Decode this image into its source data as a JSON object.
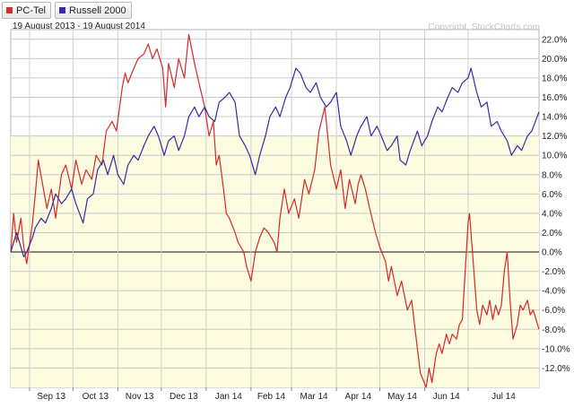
{
  "legend": [
    {
      "label": "PC-Tel",
      "color": "#d42a2a"
    },
    {
      "label": "Russell 2000",
      "color": "#3a2aa8"
    }
  ],
  "subtitle": "19 August 2013 - 19 August 2014",
  "credit": "Copyright, StockCharts.com",
  "chart_data": {
    "type": "line",
    "ylim": [
      -14,
      23
    ],
    "y_unit": "%",
    "y_ticks": [
      "22.0%",
      "20.0%",
      "18.0%",
      "16.0%",
      "14.0%",
      "12.0%",
      "10.0%",
      "8.0%",
      "6.0%",
      "4.0%",
      "2.0%",
      "0.0%",
      "-2.0%",
      "-4.0%",
      "-6.0%",
      "-8.0%",
      "-10.0%",
      "-12.0%"
    ],
    "x_ticks": [
      "Sep 13",
      "Oct 13",
      "Nov 13",
      "Dec 13",
      "Jan 14",
      "Feb 14",
      "Mar 14",
      "Apr 14",
      "May 14",
      "Jun 14",
      "Jul 14"
    ],
    "x_tick_dates": [
      "2013-09-01",
      "2013-10-01",
      "2013-11-01",
      "2013-12-01",
      "2014-01-01",
      "2014-02-01",
      "2014-03-01",
      "2014-04-01",
      "2014-05-01",
      "2014-06-01",
      "2014-07-01"
    ],
    "x_range": [
      "2013-08-19",
      "2014-08-19"
    ],
    "zero_line": 0,
    "grid": true,
    "shading": "light yellow below 12%",
    "series": [
      {
        "name": "PC-Tel",
        "color": "#d42a2a",
        "points": [
          [
            "2013-08-19",
            0.0
          ],
          [
            "2013-08-21",
            4.0
          ],
          [
            "2013-08-23",
            1.0
          ],
          [
            "2013-08-26",
            3.5
          ],
          [
            "2013-08-28",
            0.5
          ],
          [
            "2013-08-30",
            -1.2
          ],
          [
            "2013-09-03",
            3.0
          ],
          [
            "2013-09-05",
            6.0
          ],
          [
            "2013-09-07",
            9.5
          ],
          [
            "2013-09-10",
            7.0
          ],
          [
            "2013-09-13",
            4.5
          ],
          [
            "2013-09-16",
            6.5
          ],
          [
            "2013-09-19",
            3.5
          ],
          [
            "2013-09-23",
            8.0
          ],
          [
            "2013-09-26",
            9.0
          ],
          [
            "2013-09-30",
            6.5
          ],
          [
            "2013-10-03",
            9.5
          ],
          [
            "2013-10-07",
            7.0
          ],
          [
            "2013-10-10",
            8.5
          ],
          [
            "2013-10-14",
            7.5
          ],
          [
            "2013-10-17",
            10.0
          ],
          [
            "2013-10-21",
            9.0
          ],
          [
            "2013-10-24",
            12.5
          ],
          [
            "2013-10-28",
            13.5
          ],
          [
            "2013-10-31",
            12.5
          ],
          [
            "2013-11-04",
            17.0
          ],
          [
            "2013-11-06",
            18.5
          ],
          [
            "2013-11-08",
            17.5
          ],
          [
            "2013-11-12",
            19.0
          ],
          [
            "2013-11-15",
            20.0
          ],
          [
            "2013-11-19",
            20.5
          ],
          [
            "2013-11-22",
            21.5
          ],
          [
            "2013-11-25",
            20.0
          ],
          [
            "2013-11-28",
            21.0
          ],
          [
            "2013-12-02",
            19.0
          ],
          [
            "2013-12-04",
            15.0
          ],
          [
            "2013-12-06",
            19.5
          ],
          [
            "2013-12-10",
            17.0
          ],
          [
            "2013-12-13",
            20.0
          ],
          [
            "2013-12-17",
            18.0
          ],
          [
            "2013-12-20",
            22.5
          ],
          [
            "2013-12-24",
            19.5
          ],
          [
            "2013-12-27",
            17.5
          ],
          [
            "2013-12-31",
            15.0
          ],
          [
            "2014-01-03",
            12.0
          ],
          [
            "2014-01-06",
            13.5
          ],
          [
            "2014-01-08",
            9.0
          ],
          [
            "2014-01-10",
            10.0
          ],
          [
            "2014-01-13",
            6.5
          ],
          [
            "2014-01-15",
            4.0
          ],
          [
            "2014-01-17",
            3.5
          ],
          [
            "2014-01-21",
            2.0
          ],
          [
            "2014-01-23",
            1.0
          ],
          [
            "2014-01-27",
            0.0
          ],
          [
            "2014-01-29",
            -1.5
          ],
          [
            "2014-02-01",
            -3.0
          ],
          [
            "2014-02-04",
            0.0
          ],
          [
            "2014-02-07",
            1.5
          ],
          [
            "2014-02-10",
            2.5
          ],
          [
            "2014-02-13",
            2.0
          ],
          [
            "2014-02-17",
            1.0
          ],
          [
            "2014-02-19",
            0.0
          ],
          [
            "2014-02-21",
            3.5
          ],
          [
            "2014-02-24",
            6.5
          ],
          [
            "2014-02-27",
            4.0
          ],
          [
            "2014-03-03",
            5.5
          ],
          [
            "2014-03-06",
            3.5
          ],
          [
            "2014-03-10",
            7.5
          ],
          [
            "2014-03-13",
            6.0
          ],
          [
            "2014-03-17",
            8.5
          ],
          [
            "2014-03-20",
            12.5
          ],
          [
            "2014-03-24",
            15.0
          ],
          [
            "2014-03-26",
            12.0
          ],
          [
            "2014-03-28",
            9.0
          ],
          [
            "2014-04-01",
            6.5
          ],
          [
            "2014-04-04",
            8.5
          ],
          [
            "2014-04-07",
            4.5
          ],
          [
            "2014-04-10",
            7.5
          ],
          [
            "2014-04-14",
            5.0
          ],
          [
            "2014-04-16",
            7.0
          ],
          [
            "2014-04-18",
            8.0
          ],
          [
            "2014-04-21",
            6.5
          ],
          [
            "2014-04-24",
            4.5
          ],
          [
            "2014-04-28",
            2.0
          ],
          [
            "2014-05-01",
            0.5
          ],
          [
            "2014-05-05",
            -1.0
          ],
          [
            "2014-05-07",
            -3.0
          ],
          [
            "2014-05-09",
            -1.5
          ],
          [
            "2014-05-13",
            -4.5
          ],
          [
            "2014-05-16",
            -3.0
          ],
          [
            "2014-05-20",
            -6.0
          ],
          [
            "2014-05-23",
            -5.0
          ],
          [
            "2014-05-27",
            -10.0
          ],
          [
            "2014-05-29",
            -12.5
          ],
          [
            "2014-06-02",
            -14.0
          ],
          [
            "2014-06-04",
            -12.0
          ],
          [
            "2014-06-06",
            -13.5
          ],
          [
            "2014-06-09",
            -10.5
          ],
          [
            "2014-06-11",
            -9.5
          ],
          [
            "2014-06-13",
            -10.5
          ],
          [
            "2014-06-16",
            -8.5
          ],
          [
            "2014-06-18",
            -9.5
          ],
          [
            "2014-06-20",
            -8.5
          ],
          [
            "2014-06-23",
            -9.0
          ],
          [
            "2014-06-25",
            -7.5
          ],
          [
            "2014-06-27",
            -7.0
          ],
          [
            "2014-06-29",
            -2.0
          ],
          [
            "2014-07-01",
            3.0
          ],
          [
            "2014-07-02",
            4.0
          ],
          [
            "2014-07-04",
            0.0
          ],
          [
            "2014-07-07",
            -6.0
          ],
          [
            "2014-07-09",
            -7.5
          ],
          [
            "2014-07-11",
            -5.5
          ],
          [
            "2014-07-14",
            -6.5
          ],
          [
            "2014-07-16",
            -5.0
          ],
          [
            "2014-07-18",
            -7.0
          ],
          [
            "2014-07-20",
            -5.5
          ],
          [
            "2014-07-22",
            -6.5
          ],
          [
            "2014-07-24",
            -5.5
          ],
          [
            "2014-07-26",
            -2.0
          ],
          [
            "2014-07-28",
            0.0
          ],
          [
            "2014-07-30",
            -5.0
          ],
          [
            "2014-08-01",
            -9.0
          ],
          [
            "2014-08-04",
            -7.5
          ],
          [
            "2014-08-06",
            -5.5
          ],
          [
            "2014-08-08",
            -6.0
          ],
          [
            "2014-08-11",
            -5.0
          ],
          [
            "2014-08-13",
            -6.5
          ],
          [
            "2014-08-15",
            -6.0
          ],
          [
            "2014-08-19",
            -8.0
          ]
        ]
      },
      {
        "name": "Russell 2000",
        "color": "#3a2aa8",
        "points": [
          [
            "2013-08-19",
            0.0
          ],
          [
            "2013-08-21",
            1.0
          ],
          [
            "2013-08-23",
            2.0
          ],
          [
            "2013-08-26",
            0.5
          ],
          [
            "2013-08-28",
            -0.5
          ],
          [
            "2013-08-30",
            0.0
          ],
          [
            "2013-09-03",
            1.5
          ],
          [
            "2013-09-05",
            2.5
          ],
          [
            "2013-09-09",
            3.5
          ],
          [
            "2013-09-12",
            3.0
          ],
          [
            "2013-09-16",
            4.5
          ],
          [
            "2013-09-19",
            6.0
          ],
          [
            "2013-09-23",
            5.0
          ],
          [
            "2013-09-26",
            5.5
          ],
          [
            "2013-09-30",
            6.5
          ],
          [
            "2013-10-03",
            5.0
          ],
          [
            "2013-10-08",
            3.0
          ],
          [
            "2013-10-11",
            5.5
          ],
          [
            "2013-10-15",
            6.0
          ],
          [
            "2013-10-18",
            8.5
          ],
          [
            "2013-10-22",
            9.5
          ],
          [
            "2013-10-25",
            8.0
          ],
          [
            "2013-10-29",
            10.0
          ],
          [
            "2013-11-01",
            8.0
          ],
          [
            "2013-11-05",
            7.0
          ],
          [
            "2013-11-08",
            9.0
          ],
          [
            "2013-11-12",
            10.0
          ],
          [
            "2013-11-15",
            9.5
          ],
          [
            "2013-11-19",
            11.0
          ],
          [
            "2013-11-22",
            12.0
          ],
          [
            "2013-11-26",
            13.0
          ],
          [
            "2013-11-29",
            12.0
          ],
          [
            "2013-12-03",
            10.0
          ],
          [
            "2013-12-06",
            11.5
          ],
          [
            "2013-12-10",
            12.0
          ],
          [
            "2013-12-13",
            10.5
          ],
          [
            "2013-12-17",
            12.0
          ],
          [
            "2013-12-20",
            14.0
          ],
          [
            "2013-12-24",
            15.0
          ],
          [
            "2013-12-27",
            14.0
          ],
          [
            "2013-12-31",
            15.0
          ],
          [
            "2014-01-03",
            14.0
          ],
          [
            "2014-01-07",
            13.5
          ],
          [
            "2014-01-10",
            15.5
          ],
          [
            "2014-01-14",
            16.0
          ],
          [
            "2014-01-17",
            16.5
          ],
          [
            "2014-01-21",
            15.5
          ],
          [
            "2014-01-24",
            12.0
          ],
          [
            "2014-01-28",
            11.0
          ],
          [
            "2014-01-31",
            10.0
          ],
          [
            "2014-02-04",
            8.0
          ],
          [
            "2014-02-07",
            10.0
          ],
          [
            "2014-02-11",
            12.0
          ],
          [
            "2014-02-14",
            14.0
          ],
          [
            "2014-02-18",
            15.0
          ],
          [
            "2014-02-21",
            14.0
          ],
          [
            "2014-02-25",
            16.0
          ],
          [
            "2014-02-28",
            17.0
          ],
          [
            "2014-03-04",
            19.0
          ],
          [
            "2014-03-07",
            18.5
          ],
          [
            "2014-03-11",
            17.0
          ],
          [
            "2014-03-14",
            16.5
          ],
          [
            "2014-03-18",
            17.5
          ],
          [
            "2014-03-21",
            16.0
          ],
          [
            "2014-03-25",
            15.0
          ],
          [
            "2014-03-28",
            15.5
          ],
          [
            "2014-04-01",
            16.5
          ],
          [
            "2014-04-04",
            13.0
          ],
          [
            "2014-04-08",
            11.5
          ],
          [
            "2014-04-11",
            10.0
          ],
          [
            "2014-04-15",
            12.0
          ],
          [
            "2014-04-18",
            13.0
          ],
          [
            "2014-04-22",
            14.0
          ],
          [
            "2014-04-25",
            12.0
          ],
          [
            "2014-04-29",
            13.0
          ],
          [
            "2014-05-02",
            12.0
          ],
          [
            "2014-05-06",
            10.5
          ],
          [
            "2014-05-09",
            11.0
          ],
          [
            "2014-05-13",
            12.0
          ],
          [
            "2014-05-15",
            9.5
          ],
          [
            "2014-05-19",
            9.0
          ],
          [
            "2014-05-22",
            10.5
          ],
          [
            "2014-05-27",
            12.5
          ],
          [
            "2014-05-30",
            11.0
          ],
          [
            "2014-06-03",
            12.0
          ],
          [
            "2014-06-06",
            13.5
          ],
          [
            "2014-06-10",
            15.0
          ],
          [
            "2014-06-13",
            14.5
          ],
          [
            "2014-06-17",
            16.0
          ],
          [
            "2014-06-20",
            17.0
          ],
          [
            "2014-06-24",
            16.5
          ],
          [
            "2014-06-27",
            17.5
          ],
          [
            "2014-07-01",
            18.0
          ],
          [
            "2014-07-03",
            19.0
          ],
          [
            "2014-07-07",
            16.5
          ],
          [
            "2014-07-10",
            15.0
          ],
          [
            "2014-07-14",
            15.5
          ],
          [
            "2014-07-17",
            13.0
          ],
          [
            "2014-07-21",
            13.5
          ],
          [
            "2014-07-24",
            12.5
          ],
          [
            "2014-07-28",
            11.5
          ],
          [
            "2014-07-31",
            10.0
          ],
          [
            "2014-08-04",
            11.0
          ],
          [
            "2014-08-07",
            10.5
          ],
          [
            "2014-08-11",
            12.0
          ],
          [
            "2014-08-14",
            12.5
          ],
          [
            "2014-08-19",
            14.5
          ]
        ]
      }
    ]
  }
}
